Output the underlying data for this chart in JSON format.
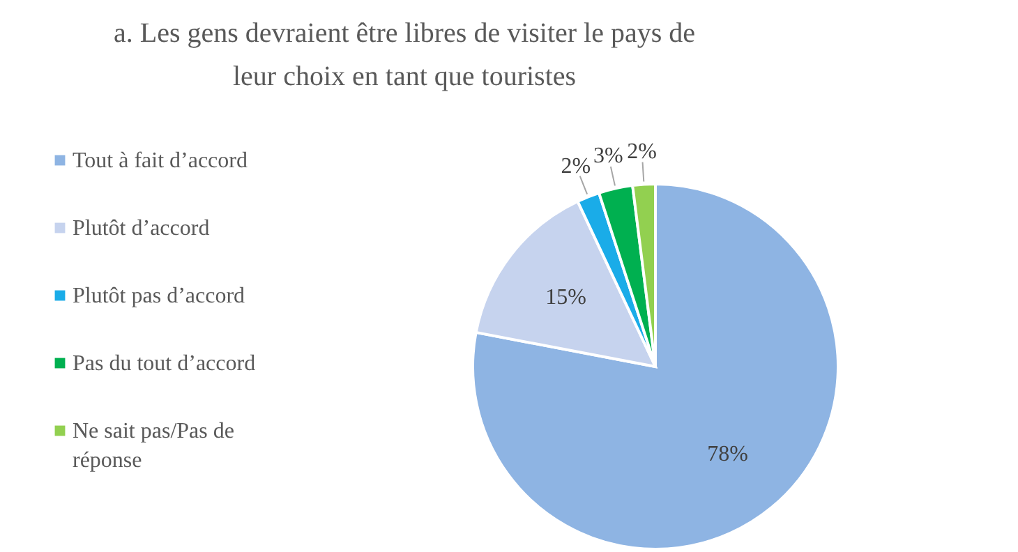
{
  "chart_data": {
    "type": "pie",
    "title": "a. Les gens devraient être libres de visiter le pays de leur choix en tant que touristes",
    "categories": [
      "Tout à fait d’accord",
      "Plutôt d’accord",
      "Plutôt pas d’accord",
      "Pas du tout d’accord",
      "Ne sait pas/Pas de réponse"
    ],
    "values": [
      78,
      15,
      2,
      3,
      2
    ],
    "colors": [
      "#8eb4e3",
      "#c6d3ee",
      "#1aace8",
      "#00b050",
      "#92d050"
    ],
    "value_labels": [
      "78%",
      "15%",
      "2%",
      "3%",
      "2%"
    ],
    "legend": "left"
  }
}
